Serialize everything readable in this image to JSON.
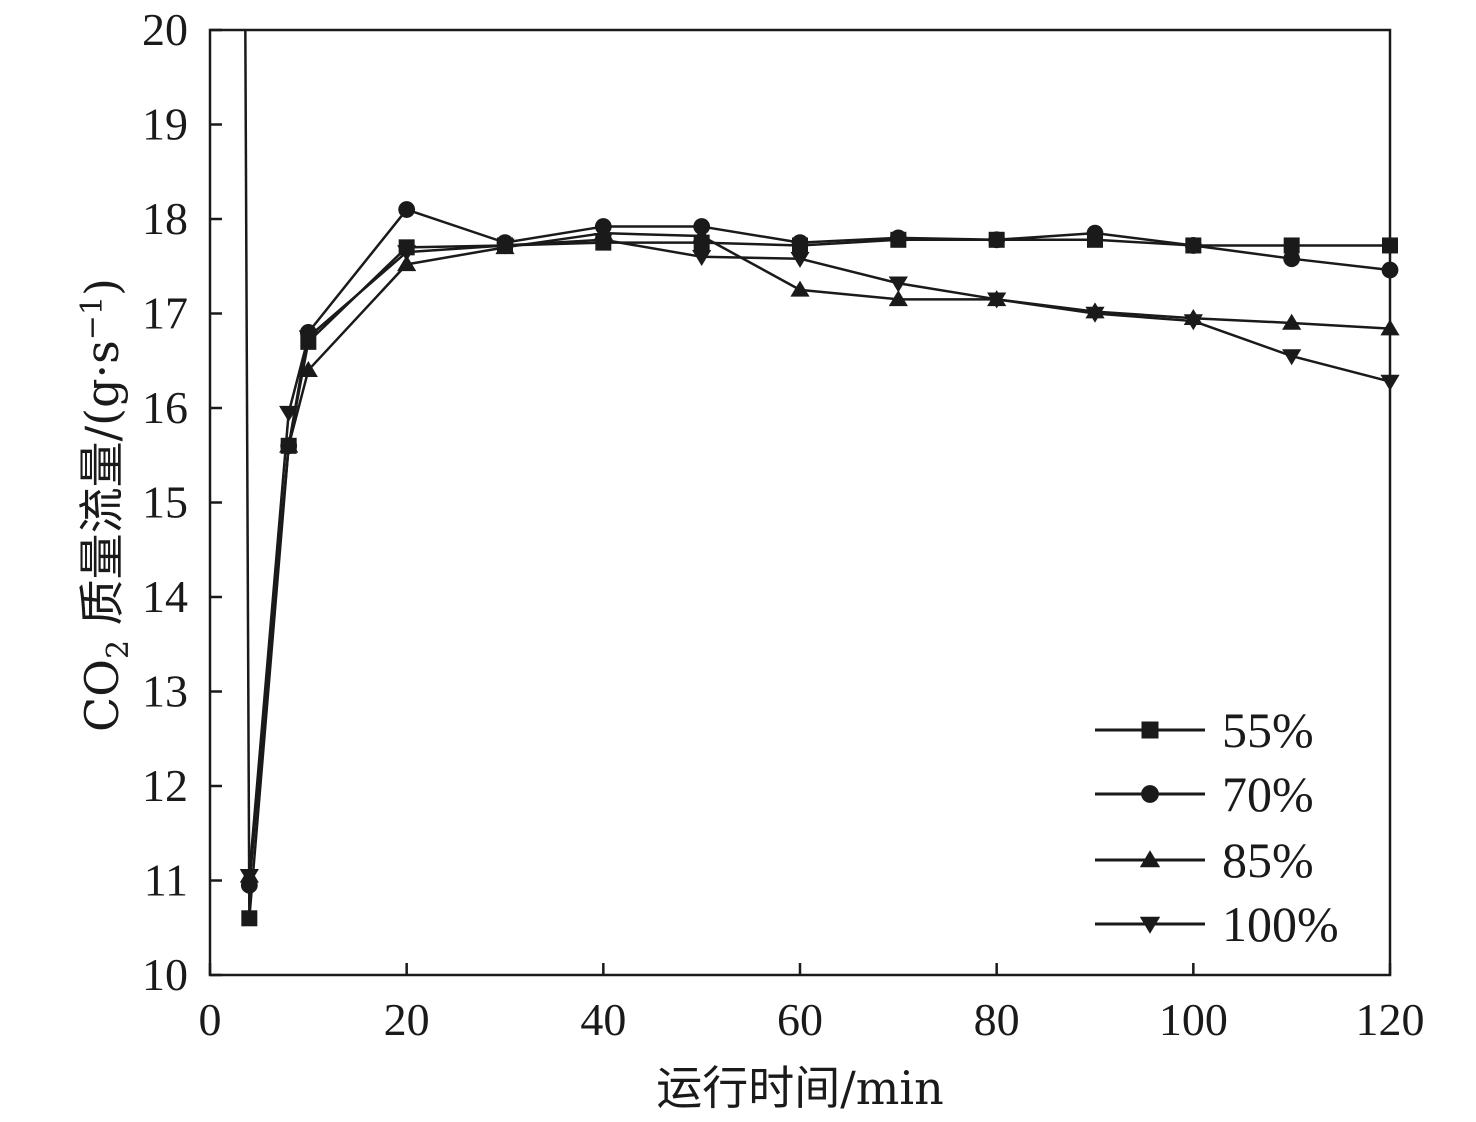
{
  "chart_data": {
    "type": "line",
    "xlabel": "运行时间/min",
    "ylabel": {
      "prefix": "CO",
      "sub": "2",
      "middle": " 质量流量/(g·s",
      "sup": "−1",
      "suffix": ")"
    },
    "xlim": [
      0,
      120
    ],
    "ylim": [
      10,
      20
    ],
    "xticks": [
      0,
      20,
      40,
      60,
      80,
      100,
      120
    ],
    "yticks": [
      10,
      11,
      12,
      13,
      14,
      15,
      16,
      17,
      18,
      19,
      20
    ],
    "grid": false,
    "legend_position": "bottom-right",
    "line_color": "#1a1a1a",
    "series": [
      {
        "name": "55%",
        "marker": "square",
        "x": [
          4,
          8,
          10,
          20,
          30,
          40,
          50,
          60,
          70,
          80,
          90,
          100,
          110,
          120
        ],
        "y": [
          10.6,
          15.6,
          16.7,
          17.7,
          17.72,
          17.75,
          17.75,
          17.72,
          17.78,
          17.78,
          17.78,
          17.72,
          17.72,
          17.72
        ]
      },
      {
        "name": "70%",
        "marker": "circle",
        "x": [
          4,
          8,
          10,
          20,
          30,
          40,
          50,
          60,
          70,
          80,
          90,
          100,
          110,
          120
        ],
        "y": [
          10.95,
          15.6,
          16.8,
          18.1,
          17.75,
          17.92,
          17.92,
          17.75,
          17.8,
          17.78,
          17.85,
          17.72,
          17.58,
          17.46
        ]
      },
      {
        "name": "85%",
        "marker": "triangle-up",
        "x": [
          4,
          8,
          10,
          20,
          30,
          40,
          50,
          60,
          70,
          80,
          90,
          100,
          110,
          120
        ],
        "y": [
          11.05,
          15.6,
          16.4,
          17.52,
          17.7,
          17.85,
          17.82,
          17.25,
          17.15,
          17.15,
          17.02,
          16.95,
          16.9,
          16.84
        ]
      },
      {
        "name": "100%",
        "marker": "triangle-down",
        "x": [
          4,
          8,
          10,
          20,
          30,
          40,
          50,
          60,
          70,
          80,
          90,
          100,
          110,
          120
        ],
        "y": [
          11.05,
          15.95,
          16.75,
          17.65,
          17.72,
          17.78,
          17.6,
          17.58,
          17.32,
          17.15,
          17.0,
          16.92,
          16.55,
          16.28
        ]
      }
    ]
  }
}
